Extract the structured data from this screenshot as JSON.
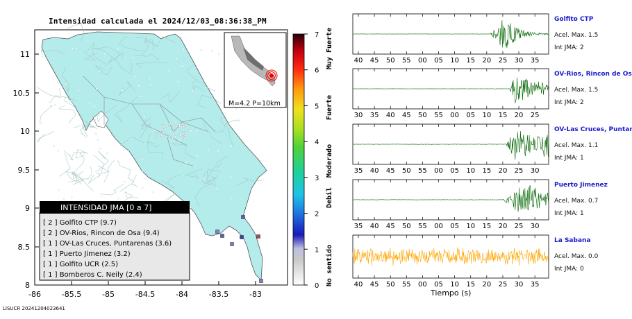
{
  "title": "Intensidad calculada el 2024/12/03_08:36:38_PM",
  "footer": "LISUCR 20241204023641",
  "map": {
    "lon_ticks": [
      "-86",
      "-85.5",
      "-85",
      "-84.5",
      "-84",
      "-83.5",
      "-83"
    ],
    "lat_ticks": [
      "11",
      "10.5",
      "10",
      "9.5",
      "9",
      "8.5",
      "8"
    ],
    "inset_label": "M=4.2 P=10km",
    "legend_title": "INTENSIDAD JMA [0 a 7]",
    "legend_items": [
      "[ 2 ]  Golfito CTP (9.7)",
      "[ 2 ]  OV-Rios, Rincon de Osa (9.4)",
      "[ 1 ]  OV-Las Cruces, Puntarenas (3.6)",
      "[ 1 ]  Puerto Jimenez (3.2)",
      "[ 1 ]  Golfito UCR (2.5)",
      "[ 1 ]  Bomberos C. Neily (2.4)"
    ]
  },
  "colorbar": {
    "ticks": [
      "0",
      "1",
      "2",
      "3",
      "4",
      "5",
      "6",
      "7"
    ],
    "categories": [
      "No sentido",
      "Debil",
      "Moderado",
      "Fuerte",
      "Muy Fuerte"
    ]
  },
  "traces_xlabel": "Tiempo (s)",
  "chart_data": {
    "type": "line",
    "series": [
      {
        "name": "Golfito CTP",
        "accel_label": "Acel. Max. 1.5",
        "jma_label": "Int JMA: 2",
        "color": "#006400",
        "tick_labels": [
          "40",
          "45",
          "50",
          "55",
          "00",
          "05",
          "10",
          "15",
          "20",
          "25",
          "30",
          "35"
        ],
        "onset_tick": 8.2,
        "peak_tick": 9.1,
        "decay": "fast",
        "noise": 0.02
      },
      {
        "name": "OV-Rios, Rincon de Osa",
        "accel_label": "Acel. Max. 1.5",
        "jma_label": "Int JMA: 2",
        "color": "#006400",
        "tick_labels": [
          "30",
          "35",
          "40",
          "45",
          "50",
          "55",
          "00",
          "05",
          "10",
          "15",
          "20",
          "25"
        ],
        "onset_tick": 9.4,
        "peak_tick": 9.8,
        "decay": "slow",
        "noise": 0.02
      },
      {
        "name": "OV-Las Cruces, Puntar",
        "accel_label": "Acel. Max. 1.1",
        "jma_label": "Int JMA: 1",
        "color": "#006400",
        "tick_labels": [
          "35",
          "40",
          "45",
          "50",
          "55",
          "00",
          "05",
          "10",
          "15",
          "20",
          "25",
          "30"
        ],
        "onset_tick": 9.2,
        "peak_tick": 9.8,
        "decay": "none",
        "noise": 0.03
      },
      {
        "name": "Puerto Jimenez",
        "accel_label": "Acel. Max. 0.7",
        "jma_label": "Int JMA: 1",
        "color": "#006400",
        "tick_labels": [
          "35",
          "40",
          "45",
          "50",
          "55",
          "00",
          "05",
          "10",
          "15",
          "20",
          "25",
          "30"
        ],
        "onset_tick": 9.0,
        "peak_tick": 10.3,
        "decay": "none",
        "noise": 0.03
      },
      {
        "name": "La Sabana",
        "accel_label": "Acel. Max. 0.0",
        "jma_label": "Int JMA: 0",
        "color": "#ffa500",
        "tick_labels": [
          "40",
          "45",
          "50",
          "55",
          "00",
          "05",
          "10",
          "15",
          "20",
          "25",
          "30",
          "35"
        ],
        "onset_tick": 0,
        "peak_tick": 0,
        "decay": "noise",
        "noise": 0.6
      }
    ]
  }
}
